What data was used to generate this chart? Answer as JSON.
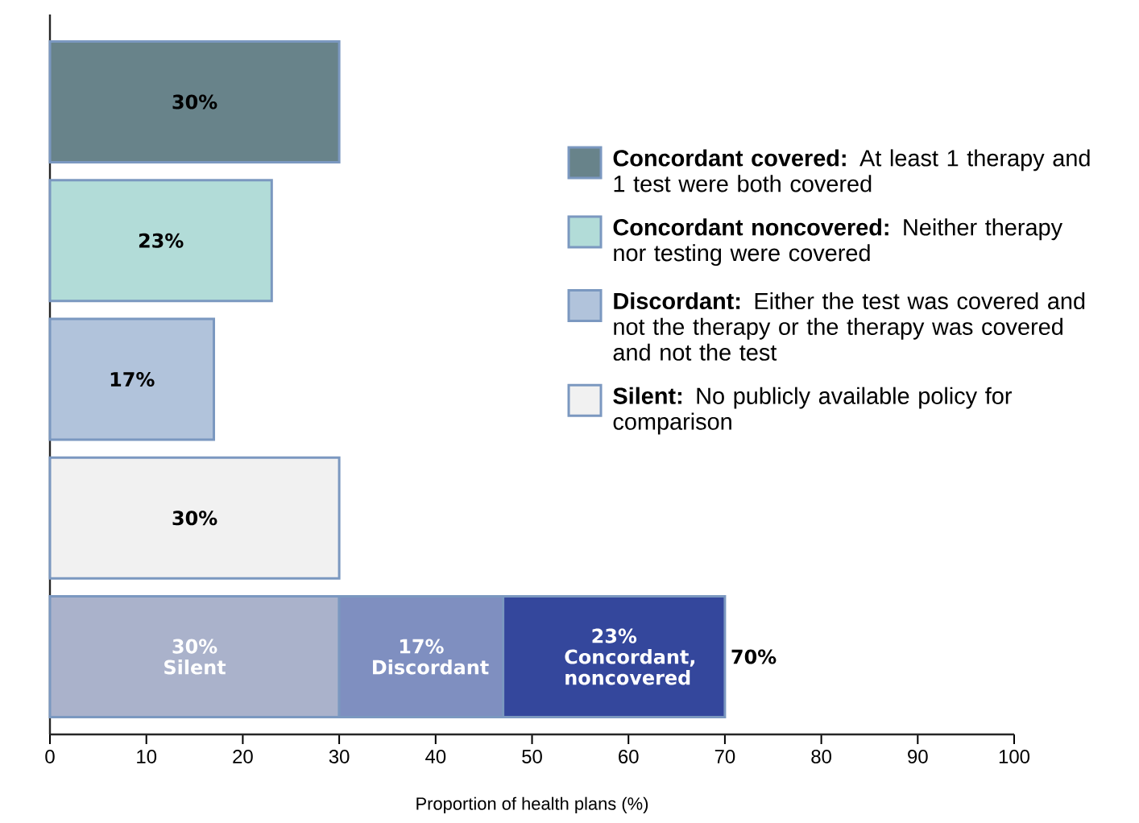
{
  "chart_data": {
    "type": "bar",
    "orientation": "horizontal",
    "stacked": true,
    "xlabel": "Proportion of  health plans (%)",
    "categories": [
      null,
      null,
      null,
      null,
      null
    ],
    "xlim": [
      0,
      100
    ],
    "xticks": [
      0,
      10,
      20,
      30,
      40,
      50,
      60,
      70,
      80,
      90,
      100
    ],
    "grid": false,
    "legend": "right",
    "series": [
      {
        "name": "**Silent:** No publicly available policy for comparison",
        "values": [
          null,
          null,
          null,
          30,
          30
        ],
        "colors": [
          null,
          null,
          null,
          "#f1f1f1",
          "#aab2cb"
        ],
        "value_labels": [
          null,
          null,
          null,
          "30%",
          "30% Silent"
        ]
      },
      {
        "name": "**Discordant:** Either the test was covered and not the therapy or the therapy was covered and not the test",
        "values": [
          null,
          null,
          17,
          null,
          17
        ],
        "colors": [
          null,
          null,
          "#b1c3db",
          null,
          "#7f8fc0"
        ],
        "value_labels": [
          null,
          null,
          "17%",
          null,
          "17% Discordant"
        ]
      },
      {
        "name": "**Concordant noncovered:** Neither therapy nor testing were covered",
        "values": [
          null,
          23,
          null,
          null,
          23
        ],
        "colors": [
          null,
          "#b2dcd8",
          null,
          null,
          "#34479c"
        ],
        "value_labels": [
          null,
          "23%",
          null,
          null,
          "23% Concordant, noncovered"
        ]
      },
      {
        "name": "**Concordant covered:** At least 1 therapy and 1 test were both covered",
        "values": [
          30,
          null,
          null,
          null,
          null
        ],
        "colors": [
          "#68838a",
          null,
          null,
          null,
          null
        ],
        "value_labels": [
          "30%",
          null,
          null,
          null,
          null
        ]
      }
    ],
    "totals": [
      null,
      null,
      null,
      null,
      "70%"
    ]
  }
}
